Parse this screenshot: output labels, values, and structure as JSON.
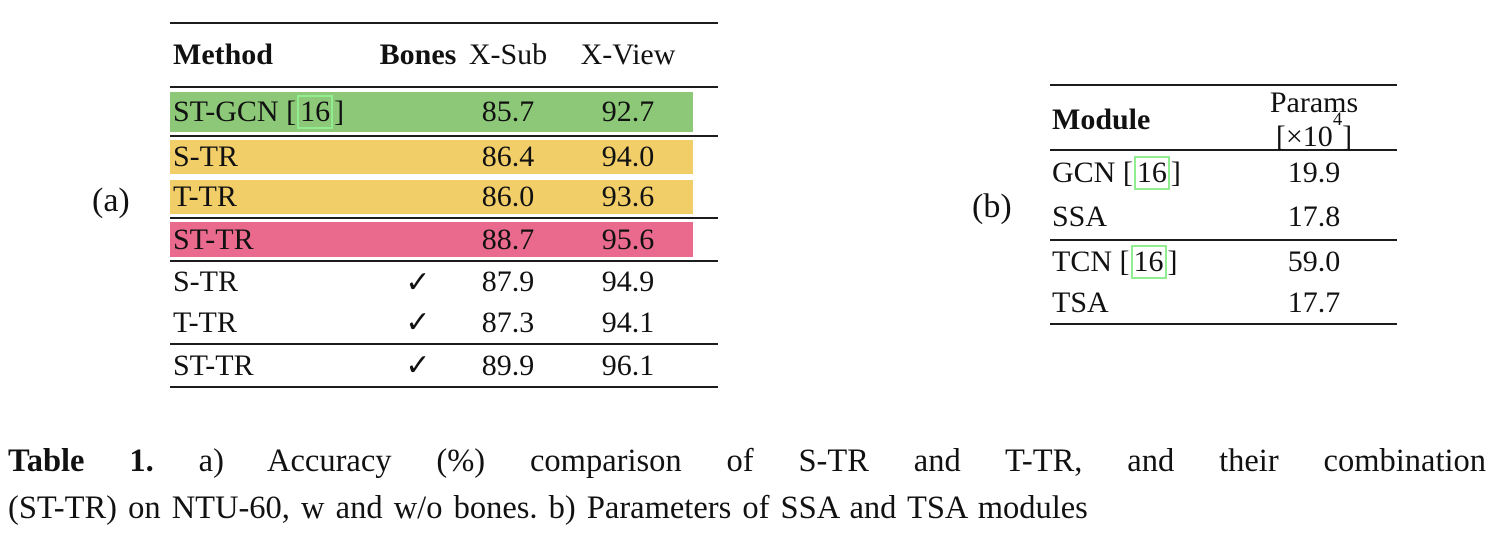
{
  "panel_a": {
    "label": "(a)",
    "header": {
      "method": "Method",
      "bones": "Bones",
      "xsub": "X-Sub",
      "xview": "X-View"
    },
    "rows": [
      {
        "method": "ST-GCN",
        "cite": "16",
        "xsub": "85.7",
        "xview": "92.7",
        "highlight": "green"
      },
      {
        "method": "S-TR",
        "xsub": "86.4",
        "xview": "94.0",
        "highlight": "yellow"
      },
      {
        "method": "T-TR",
        "xsub": "86.0",
        "xview": "93.6",
        "highlight": "yellow"
      },
      {
        "method": "ST-TR",
        "xsub": "88.7",
        "xview": "95.6",
        "highlight": "pink"
      },
      {
        "method": "S-TR",
        "bones": true,
        "xsub": "87.9",
        "xview": "94.9",
        "highlight": "none"
      },
      {
        "method": "T-TR",
        "bones": true,
        "xsub": "87.3",
        "xview": "94.1",
        "highlight": "none"
      },
      {
        "method": "ST-TR",
        "bones": true,
        "xsub": "89.9",
        "xview": "96.1",
        "highlight": "none"
      }
    ]
  },
  "panel_b": {
    "label": "(b)",
    "header": {
      "module": "Module",
      "params_prefix": "Params [×10",
      "params_sup": "4",
      "params_suffix": "]"
    },
    "rows": [
      {
        "module": "GCN",
        "cite": "16",
        "params": "19.9"
      },
      {
        "module": "SSA",
        "params": "17.8"
      },
      {
        "module": "TCN",
        "cite": "16",
        "params": "59.0"
      },
      {
        "module": "TSA",
        "params": "17.7"
      }
    ]
  },
  "symbols": {
    "check": "✓",
    "bracket_open": "[",
    "bracket_close": "]"
  },
  "colors": {
    "highlight_green": "#8cc878",
    "highlight_yellow": "#f2ce69",
    "highlight_pink": "#e96a8c",
    "citation_box": "#90ee90",
    "rule": "#1c1c1c"
  },
  "caption": {
    "label": "Table 1.",
    "line1": "a) Accuracy (%) comparison of S-TR and T-TR, and their combination",
    "line2": "(ST-TR) on NTU-60, w and w/o bones. b) Parameters of SSA and TSA modules"
  }
}
